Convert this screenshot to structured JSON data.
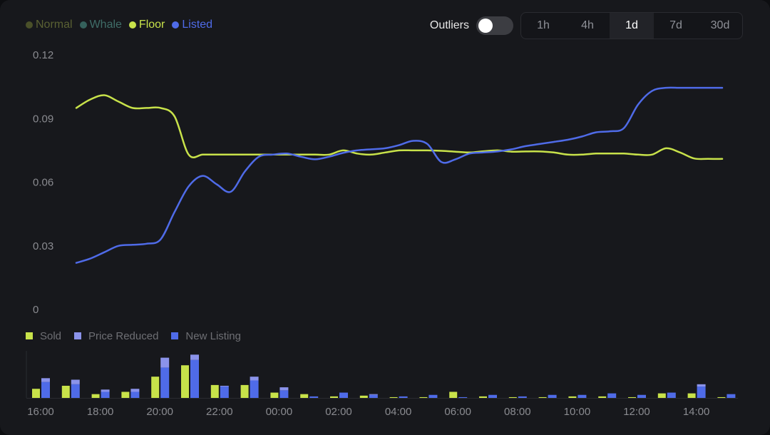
{
  "legend": [
    {
      "label": "Normal",
      "color": "#5a6133",
      "dot_color": "#4a5029"
    },
    {
      "label": "Whale",
      "color": "#3f6d68",
      "dot_color": "#35615c"
    },
    {
      "label": "Floor",
      "color": "#c8e24a",
      "dot_color": "#c8e24a"
    },
    {
      "label": "Listed",
      "color": "#4f6be8",
      "dot_color": "#4f6be8"
    }
  ],
  "controls": {
    "outliers_label": "Outliers",
    "outliers_enabled": false,
    "ranges": [
      "1h",
      "4h",
      "1d",
      "7d",
      "30d"
    ],
    "active_range": "1d"
  },
  "chart_data": [
    {
      "type": "line",
      "ylim": [
        0,
        0.12
      ],
      "y_ticks": [
        "0.12",
        "0.09",
        "0.06",
        "0.03",
        "0"
      ],
      "y_tick_values": [
        0.12,
        0.09,
        0.06,
        0.03,
        0
      ],
      "xlim": [
        0,
        23
      ],
      "series": [
        {
          "name": "Floor",
          "color": "#c8e24a",
          "x": [
            0,
            0.5,
            1,
            1.5,
            2,
            2.5,
            3,
            3.5,
            4,
            4.5,
            5,
            5.5,
            6,
            6.5,
            7,
            7.5,
            8,
            8.5,
            9,
            9.5,
            10,
            10.5,
            11,
            11.5,
            12,
            12.5,
            13,
            13.5,
            14,
            14.5,
            15,
            15.5,
            16,
            16.5,
            17,
            17.5,
            18,
            18.5,
            19,
            19.5,
            20,
            20.5,
            21,
            21.5,
            22,
            22.5,
            23
          ],
          "values": [
            0.095,
            0.099,
            0.101,
            0.098,
            0.095,
            0.095,
            0.095,
            0.091,
            0.073,
            0.073,
            0.073,
            0.073,
            0.073,
            0.073,
            0.073,
            0.073,
            0.073,
            0.073,
            0.073,
            0.075,
            0.0735,
            0.073,
            0.074,
            0.075,
            0.075,
            0.075,
            0.0748,
            0.0744,
            0.074,
            0.0746,
            0.075,
            0.0744,
            0.0745,
            0.0745,
            0.074,
            0.073,
            0.073,
            0.0735,
            0.0735,
            0.0735,
            0.073,
            0.073,
            0.076,
            0.074,
            0.0712,
            0.071,
            0.071
          ]
        },
        {
          "name": "Listed",
          "color": "#4f6be8",
          "x": [
            0,
            0.5,
            1,
            1.5,
            2,
            2.5,
            3,
            3.5,
            4,
            4.5,
            5,
            5.5,
            6,
            6.5,
            7,
            7.5,
            8,
            8.5,
            9,
            9.5,
            10,
            10.5,
            11,
            11.5,
            12,
            12.5,
            13,
            13.5,
            14,
            14.5,
            15,
            15.5,
            16,
            16.5,
            17,
            17.5,
            18,
            18.5,
            19,
            19.5,
            20,
            20.5,
            21,
            21.5,
            22,
            22.5,
            23
          ],
          "values": [
            0.022,
            0.024,
            0.027,
            0.03,
            0.0305,
            0.031,
            0.033,
            0.046,
            0.058,
            0.063,
            0.059,
            0.0555,
            0.065,
            0.072,
            0.073,
            0.0735,
            0.072,
            0.0708,
            0.072,
            0.0738,
            0.075,
            0.0755,
            0.076,
            0.0775,
            0.0795,
            0.078,
            0.0695,
            0.0708,
            0.0735,
            0.074,
            0.0745,
            0.0755,
            0.077,
            0.078,
            0.079,
            0.08,
            0.0815,
            0.0835,
            0.084,
            0.0855,
            0.0965,
            0.103,
            0.1045,
            0.1045,
            0.1045,
            0.1045,
            0.1045
          ]
        }
      ]
    },
    {
      "type": "bar",
      "categories": [
        "16:00",
        "17:00",
        "18:00",
        "19:00",
        "20:00",
        "21:00",
        "22:00",
        "23:00",
        "00:00",
        "01:00",
        "02:00",
        "03:00",
        "04:00",
        "05:00",
        "06:00",
        "07:00",
        "08:00",
        "09:00",
        "10:00",
        "11:00",
        "12:00",
        "13:00",
        "14:00",
        "15:00"
      ],
      "x_ticks": [
        "16:00",
        "18:00",
        "20:00",
        "22:00",
        "00:00",
        "02:00",
        "04:00",
        "06:00",
        "08:00",
        "10:00",
        "12:00",
        "14:00"
      ],
      "x_tick_positions": [
        0,
        2,
        4,
        6,
        8,
        10,
        12,
        14,
        16,
        18,
        20,
        22
      ],
      "ylim": [
        0,
        62
      ],
      "series": [
        {
          "name": "Sold",
          "color": "#c8e24a",
          "values": [
            12,
            16,
            5,
            8,
            28,
            43,
            17,
            17,
            7,
            5,
            2,
            3,
            1,
            1,
            8,
            2,
            1,
            1,
            2,
            2,
            1,
            6,
            6,
            1
          ]
        },
        {
          "name": "New Listing",
          "color": "#4f6be8",
          "values": [
            21,
            18,
            8,
            8,
            40,
            50,
            15,
            23,
            10,
            2,
            7,
            4,
            2,
            4,
            1,
            4,
            2,
            4,
            4,
            6,
            4,
            7,
            15,
            5
          ]
        },
        {
          "name": "Price Reduced",
          "color": "#8b93ea",
          "values": [
            5,
            6,
            3,
            4,
            13,
            7,
            1,
            5,
            4,
            0,
            0,
            1,
            0,
            0,
            0,
            0,
            0,
            0,
            0,
            0,
            0,
            0,
            3,
            0
          ]
        }
      ],
      "legend_order": [
        "Sold",
        "Price Reduced",
        "New Listing"
      ]
    }
  ]
}
